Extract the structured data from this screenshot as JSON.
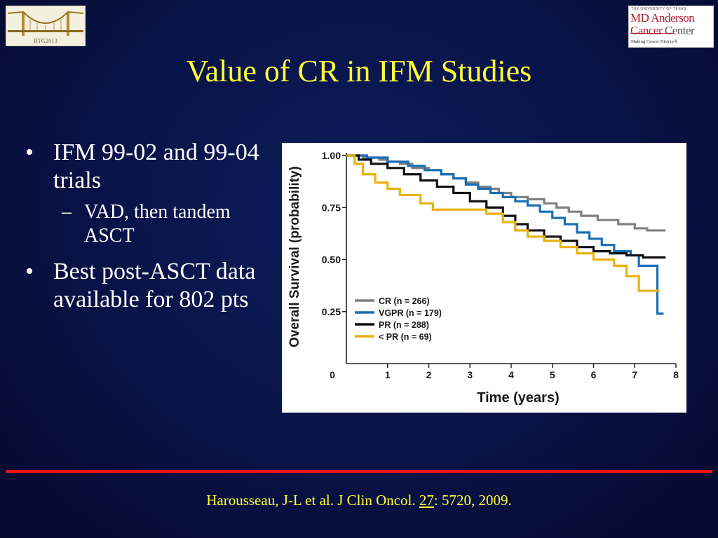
{
  "slide": {
    "title": "Value of CR in IFM Studies",
    "bullets": [
      {
        "text": "IFM 99-02 and 99-04 trials",
        "sub": "VAD, then tandem ASCT"
      },
      {
        "text": "Best post-ASCT data available for 802 pts"
      }
    ],
    "citation": {
      "before": "Harousseau, J-L et al. J Clin Oncol. ",
      "volume": "27",
      "after": ": 5720, 2009."
    }
  },
  "logos": {
    "left": {
      "caption": "BTG2013",
      "icon": "golden-gate-bridge"
    },
    "right": {
      "top_text": "THE UNIVERSITY OF TEXAS",
      "line1": "MD Anderson",
      "line2a": "Cancer",
      "line2b": " Center",
      "tagline": "Making Cancer History®"
    }
  },
  "colors": {
    "title": "#ffff33",
    "rule": "#ee1111",
    "CR": "#808080",
    "VGPR": "#1a6fb5",
    "PR": "#111111",
    "ltPR": "#e8b20e"
  },
  "chart_data": {
    "type": "line",
    "subtype": "kaplan-meier step",
    "xlabel": "Time (years)",
    "ylabel": "Overall Survival (probability)",
    "xlim": [
      0,
      8
    ],
    "ylim": [
      0,
      1.0
    ],
    "x_ticks": [
      "0",
      "1",
      "2",
      "3",
      "4",
      "5",
      "6",
      "7",
      "8"
    ],
    "y_ticks": [
      "0.25",
      "0.50",
      "0.75",
      "1.00"
    ],
    "legend_position": "lower-left",
    "series": [
      {
        "name": "CR (n = 266)",
        "color": "#808080",
        "points": [
          [
            0,
            1.0
          ],
          [
            0.4,
            0.99
          ],
          [
            0.8,
            0.98
          ],
          [
            1.0,
            0.97
          ],
          [
            1.3,
            0.96
          ],
          [
            1.6,
            0.94
          ],
          [
            2.0,
            0.93
          ],
          [
            2.3,
            0.91
          ],
          [
            2.6,
            0.89
          ],
          [
            2.9,
            0.87
          ],
          [
            3.2,
            0.85
          ],
          [
            3.5,
            0.84
          ],
          [
            3.7,
            0.82
          ],
          [
            4.0,
            0.8
          ],
          [
            4.4,
            0.79
          ],
          [
            4.8,
            0.77
          ],
          [
            5.1,
            0.75
          ],
          [
            5.4,
            0.73
          ],
          [
            5.7,
            0.71
          ],
          [
            6.1,
            0.69
          ],
          [
            6.6,
            0.67
          ],
          [
            7.0,
            0.65
          ],
          [
            7.3,
            0.64
          ],
          [
            7.75,
            0.64
          ]
        ]
      },
      {
        "name": "VGPR (n = 179)",
        "color": "#1a6fb5",
        "points": [
          [
            0,
            1.0
          ],
          [
            0.5,
            0.99
          ],
          [
            1.0,
            0.97
          ],
          [
            1.5,
            0.95
          ],
          [
            1.9,
            0.93
          ],
          [
            2.3,
            0.91
          ],
          [
            2.6,
            0.89
          ],
          [
            2.9,
            0.86
          ],
          [
            3.2,
            0.84
          ],
          [
            3.5,
            0.82
          ],
          [
            3.8,
            0.8
          ],
          [
            4.1,
            0.78
          ],
          [
            4.4,
            0.76
          ],
          [
            4.7,
            0.73
          ],
          [
            5.0,
            0.7
          ],
          [
            5.3,
            0.67
          ],
          [
            5.6,
            0.63
          ],
          [
            5.9,
            0.6
          ],
          [
            6.2,
            0.57
          ],
          [
            6.5,
            0.54
          ],
          [
            6.9,
            0.52
          ],
          [
            7.1,
            0.47
          ],
          [
            7.4,
            0.47
          ],
          [
            7.55,
            0.24
          ],
          [
            7.7,
            0.24
          ]
        ]
      },
      {
        "name": "PR (n = 288)",
        "color": "#111111",
        "points": [
          [
            0,
            1.0
          ],
          [
            0.3,
            0.98
          ],
          [
            0.6,
            0.96
          ],
          [
            1.0,
            0.94
          ],
          [
            1.4,
            0.91
          ],
          [
            1.8,
            0.88
          ],
          [
            2.2,
            0.85
          ],
          [
            2.6,
            0.82
          ],
          [
            3.0,
            0.78
          ],
          [
            3.4,
            0.75
          ],
          [
            3.8,
            0.71
          ],
          [
            4.1,
            0.67
          ],
          [
            4.4,
            0.64
          ],
          [
            4.8,
            0.61
          ],
          [
            5.2,
            0.59
          ],
          [
            5.6,
            0.56
          ],
          [
            6.0,
            0.54
          ],
          [
            6.4,
            0.53
          ],
          [
            6.8,
            0.52
          ],
          [
            7.2,
            0.51
          ],
          [
            7.75,
            0.51
          ]
        ]
      },
      {
        "name": "< PR (n = 69)",
        "color": "#e8b20e",
        "points": [
          [
            0,
            1.0
          ],
          [
            0.2,
            0.96
          ],
          [
            0.4,
            0.91
          ],
          [
            0.7,
            0.87
          ],
          [
            1.0,
            0.84
          ],
          [
            1.3,
            0.81
          ],
          [
            1.8,
            0.77
          ],
          [
            2.1,
            0.74
          ],
          [
            2.6,
            0.74
          ],
          [
            3.0,
            0.74
          ],
          [
            3.4,
            0.72
          ],
          [
            3.8,
            0.68
          ],
          [
            4.1,
            0.64
          ],
          [
            4.4,
            0.61
          ],
          [
            4.8,
            0.59
          ],
          [
            5.2,
            0.56
          ],
          [
            5.6,
            0.53
          ],
          [
            6.0,
            0.5
          ],
          [
            6.5,
            0.47
          ],
          [
            6.8,
            0.42
          ],
          [
            7.1,
            0.35
          ],
          [
            7.6,
            0.35
          ]
        ]
      }
    ]
  }
}
